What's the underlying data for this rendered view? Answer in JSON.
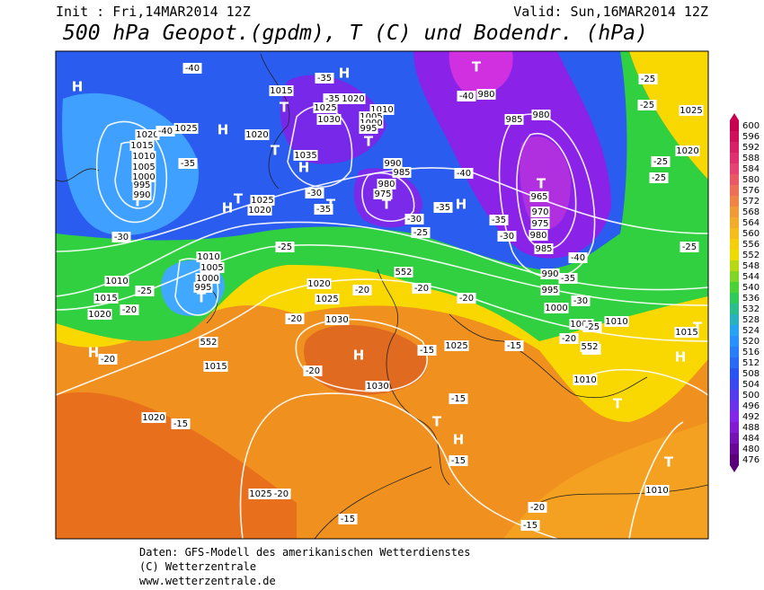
{
  "header": {
    "init": "Init : Fri,14MAR2014 12Z",
    "valid": "Valid: Sun,16MAR2014 12Z",
    "title": "500 hPa Geopot.(gpdm), T (C) und Bodendr. (hPa)"
  },
  "colorbar": {
    "ticks": [
      600,
      596,
      592,
      588,
      584,
      580,
      576,
      572,
      568,
      564,
      560,
      556,
      552,
      548,
      544,
      540,
      536,
      532,
      528,
      524,
      520,
      516,
      512,
      508,
      504,
      500,
      496,
      492,
      488,
      484,
      480,
      476
    ]
  },
  "map": {
    "labels": [
      "H",
      "H",
      "T",
      "H",
      "T",
      "T",
      "T",
      "T",
      "T",
      "H",
      "T",
      "T",
      "T",
      "H",
      "T",
      "H",
      "H",
      "T",
      "H",
      "T",
      "T",
      "H",
      "T",
      "H",
      "1015",
      "1020",
      "1025",
      "1030",
      "1010",
      "1005",
      "1000",
      "995",
      "990",
      "985",
      "980",
      "975",
      "1035",
      "1020",
      "1015",
      "1010",
      "1005",
      "1000",
      "995",
      "990",
      "1025",
      "1020",
      "1025",
      "1020",
      "1010",
      "1005",
      "1000",
      "995",
      "1010",
      "1015",
      "1020",
      "1020",
      "1025",
      "1030",
      "1015",
      "1030",
      "1025",
      "1020",
      "1025",
      "980",
      "985",
      "980",
      "965",
      "970",
      "975",
      "980",
      "985",
      "990",
      "995",
      "1000",
      "1005",
      "1010",
      "1010",
      "1015",
      "1025",
      "1020",
      "1010",
      "-40",
      "-35",
      "-35",
      "-40",
      "-35",
      "-30",
      "-25",
      "-25",
      "-20",
      "-20",
      "-30",
      "-35",
      "-30",
      "-25",
      "-35",
      "-40",
      "-40",
      "-35",
      "-30",
      "-40",
      "-35",
      "-30",
      "-25",
      "-20",
      "-25",
      "-25",
      "-25",
      "-25",
      "-25",
      "-20",
      "-20",
      "-20",
      "-20",
      "-20",
      "-15",
      "-15",
      "-15",
      "-15",
      "-15",
      "-20",
      "-20",
      "-15",
      "-15",
      "-20",
      "552",
      "552",
      "552"
    ]
  },
  "footer": {
    "line1": "Daten: GFS-Modell des amerikanischen Wetterdienstes",
    "line2": "(C) Wetterzentrale",
    "line3": "www.wetterzentrale.de"
  }
}
